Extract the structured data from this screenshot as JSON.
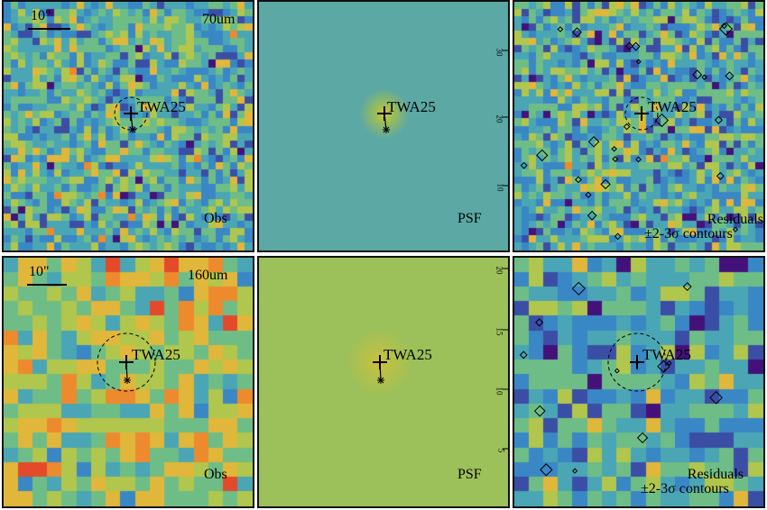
{
  "source_name": "TWA25",
  "scale_bar_label": "10\"",
  "labels": {
    "obs": "Obs",
    "psf": "PSF",
    "residuals_line1": "Residuals",
    "residuals_line2": "±2-3σ contours"
  },
  "rows": [
    {
      "band": "70um",
      "ticks": [
        "30",
        "20",
        "10"
      ],
      "colors": {
        "psf_bg": "#5ba8a4",
        "psf_glow": "#c8c236"
      }
    },
    {
      "band": "160um",
      "ticks": [
        "20",
        "15",
        "10",
        "5"
      ],
      "colors": {
        "psf_bg": "#9cc05a",
        "psf_glow": "#d4bf38"
      }
    }
  ],
  "colormap": [
    "#44117a",
    "#3b4ea6",
    "#3a87c6",
    "#4aa6b4",
    "#6fbd86",
    "#b1c64d",
    "#e0b73a",
    "#ec8a2d",
    "#e34a2a"
  ]
}
